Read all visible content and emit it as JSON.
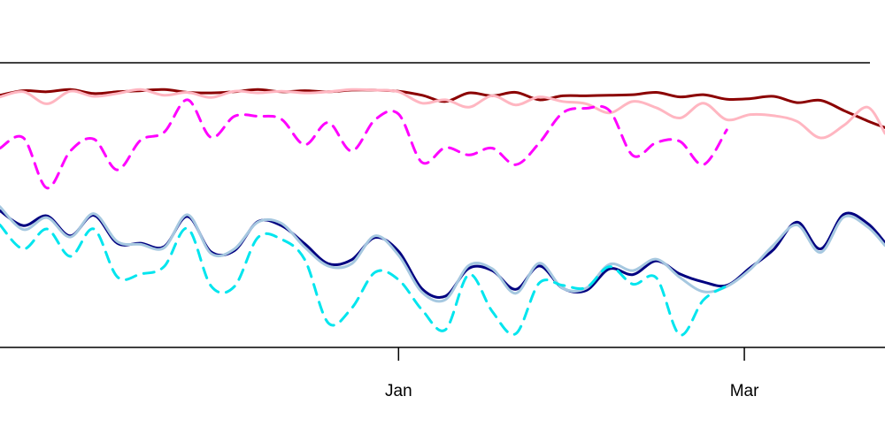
{
  "chart_data": {
    "type": "line",
    "title": "",
    "xlabel": "",
    "ylabel": "",
    "x_ticks": [
      {
        "label": "Jan",
        "date": "2015-01-01"
      },
      {
        "label": "Mar",
        "date": "2015-03-01"
      }
    ],
    "xlim": [
      "2014-10-25",
      "2015-03-25"
    ],
    "ylim": [
      0,
      100
    ],
    "grid": false,
    "legend": "none",
    "series": [
      {
        "color": "#8b0000",
        "style": "solid",
        "x": [
          "2014-10-25",
          "2014-10-29",
          "2014-11-02",
          "2014-11-06",
          "2014-11-10",
          "2014-11-14",
          "2014-11-18",
          "2014-11-22",
          "2014-11-26",
          "2014-11-30",
          "2014-12-04",
          "2014-12-08",
          "2014-12-12",
          "2014-12-16",
          "2014-12-20",
          "2014-12-24",
          "2014-12-28",
          "2015-01-01",
          "2015-01-05",
          "2015-01-09",
          "2015-01-13",
          "2015-01-17",
          "2015-01-21",
          "2015-01-25",
          "2015-01-29",
          "2015-02-02",
          "2015-02-06",
          "2015-02-10",
          "2015-02-14",
          "2015-02-18",
          "2015-02-22",
          "2015-02-26",
          "2015-03-02",
          "2015-03-06",
          "2015-03-10",
          "2015-03-14",
          "2015-03-18",
          "2015-03-22",
          "2015-03-25"
        ],
        "y": [
          88.6,
          90.2,
          89.8,
          90.6,
          89.2,
          89.8,
          90.2,
          90.6,
          89.6,
          89.4,
          89.8,
          90.6,
          89.8,
          90.2,
          89.8,
          90.4,
          90.4,
          90.0,
          88.6,
          86.4,
          89.4,
          88.4,
          89.6,
          87.0,
          88.4,
          88.4,
          88.6,
          88.8,
          89.6,
          88.0,
          88.8,
          87.2,
          87.4,
          88.2,
          86.0,
          86.8,
          83.2,
          79.6,
          77.2
        ]
      },
      {
        "color": "#ffb6c1",
        "style": "solid",
        "x": [
          "2014-10-25",
          "2014-10-29",
          "2014-11-02",
          "2014-11-06",
          "2014-11-10",
          "2014-11-14",
          "2014-11-18",
          "2014-11-22",
          "2014-11-26",
          "2014-11-30",
          "2014-12-04",
          "2014-12-08",
          "2014-12-12",
          "2014-12-16",
          "2014-12-20",
          "2014-12-24",
          "2014-12-28",
          "2015-01-01",
          "2015-01-05",
          "2015-01-09",
          "2015-01-13",
          "2015-01-17",
          "2015-01-21",
          "2015-01-25",
          "2015-01-29",
          "2015-02-02",
          "2015-02-06",
          "2015-02-10",
          "2015-02-14",
          "2015-02-18",
          "2015-02-22",
          "2015-02-26",
          "2015-03-02",
          "2015-03-06",
          "2015-03-10",
          "2015-03-14",
          "2015-03-18",
          "2015-03-22",
          "2015-03-25"
        ],
        "y": [
          88.0,
          89.8,
          85.6,
          90.0,
          88.2,
          89.2,
          90.6,
          88.6,
          89.6,
          87.8,
          90.0,
          89.4,
          90.0,
          89.4,
          89.8,
          90.6,
          90.4,
          89.8,
          85.8,
          87.0,
          84.4,
          88.4,
          85.2,
          88.0,
          86.4,
          85.6,
          82.4,
          86.4,
          84.2,
          80.6,
          85.8,
          80.0,
          81.8,
          81.4,
          79.4,
          73.6,
          78.0,
          84.4,
          75.2
        ]
      },
      {
        "color": "#ff00ff",
        "style": "dashed",
        "x": [
          "2014-10-25",
          "2014-10-29",
          "2014-11-02",
          "2014-11-06",
          "2014-11-10",
          "2014-11-14",
          "2014-11-18",
          "2014-11-22",
          "2014-11-26",
          "2014-11-30",
          "2014-12-04",
          "2014-12-08",
          "2014-12-12",
          "2014-12-16",
          "2014-12-20",
          "2014-12-24",
          "2014-12-28",
          "2015-01-01",
          "2015-01-05",
          "2015-01-09",
          "2015-01-13",
          "2015-01-17",
          "2015-01-21",
          "2015-01-25",
          "2015-01-29",
          "2015-02-02",
          "2015-02-06",
          "2015-02-10",
          "2015-02-14",
          "2015-02-18",
          "2015-02-22",
          "2015-02-26"
        ],
        "y": [
          70.0,
          73.6,
          56.0,
          69.0,
          73.2,
          62.4,
          72.8,
          75.6,
          87.0,
          73.8,
          81.2,
          81.2,
          80.2,
          71.2,
          79.0,
          69.0,
          80.0,
          82.0,
          65.0,
          70.2,
          67.6,
          70.0,
          64.2,
          71.8,
          82.4,
          84.0,
          83.2,
          67.4,
          72.0,
          72.4,
          64.2,
          76.4
        ]
      },
      {
        "color": "#000080",
        "style": "solid",
        "x": [
          "2014-10-25",
          "2014-10-29",
          "2014-11-02",
          "2014-11-06",
          "2014-11-10",
          "2014-11-14",
          "2014-11-18",
          "2014-11-22",
          "2014-11-26",
          "2014-11-30",
          "2014-12-04",
          "2014-12-08",
          "2014-12-12",
          "2014-12-16",
          "2014-12-20",
          "2014-12-24",
          "2014-12-28",
          "2015-01-01",
          "2015-01-05",
          "2015-01-09",
          "2015-01-13",
          "2015-01-17",
          "2015-01-21",
          "2015-01-25",
          "2015-01-29",
          "2015-02-02",
          "2015-02-06",
          "2015-02-10",
          "2015-02-14",
          "2015-02-18",
          "2015-02-22",
          "2015-02-26",
          "2015-03-02",
          "2015-03-06",
          "2015-03-10",
          "2015-03-14",
          "2015-03-18",
          "2015-03-22",
          "2015-03-25"
        ],
        "y": [
          48.0,
          42.8,
          46.2,
          39.2,
          46.4,
          36.6,
          36.6,
          35.4,
          46.0,
          33.6,
          34.0,
          44.2,
          42.8,
          36.4,
          29.4,
          30.8,
          38.6,
          33.8,
          20.6,
          18.0,
          27.8,
          27.0,
          20.4,
          28.6,
          20.8,
          20.0,
          27.6,
          25.6,
          30.4,
          25.8,
          23.0,
          21.8,
          28.0,
          34.4,
          44.0,
          34.6,
          46.8,
          43.6,
          36.8
        ]
      },
      {
        "color": "#a6c8e0",
        "style": "solid",
        "x": [
          "2014-10-25",
          "2014-10-29",
          "2014-11-02",
          "2014-11-06",
          "2014-11-10",
          "2014-11-14",
          "2014-11-18",
          "2014-11-22",
          "2014-11-26",
          "2014-11-30",
          "2014-12-04",
          "2014-12-08",
          "2014-12-12",
          "2014-12-16",
          "2014-12-20",
          "2014-12-24",
          "2014-12-28",
          "2015-01-01",
          "2015-01-05",
          "2015-01-09",
          "2015-01-13",
          "2015-01-17",
          "2015-01-21",
          "2015-01-25",
          "2015-01-29",
          "2015-02-02",
          "2015-02-06",
          "2015-02-10",
          "2015-02-14",
          "2015-02-18",
          "2015-02-22",
          "2015-02-26",
          "2015-03-02",
          "2015-03-06",
          "2015-03-10",
          "2015-03-14",
          "2015-03-18",
          "2015-03-22",
          "2015-03-25"
        ],
        "y": [
          49.4,
          41.4,
          45.6,
          38.8,
          47.0,
          37.2,
          36.2,
          35.0,
          46.6,
          33.0,
          34.6,
          44.0,
          43.6,
          35.2,
          28.6,
          29.4,
          39.2,
          32.4,
          19.4,
          16.8,
          28.8,
          27.6,
          19.0,
          29.6,
          20.8,
          20.8,
          29.2,
          27.0,
          31.0,
          24.6,
          19.6,
          21.4,
          27.4,
          36.0,
          43.0,
          33.4,
          45.8,
          42.4,
          35.8
        ]
      },
      {
        "color": "#00e5ee",
        "style": "dashed",
        "x": [
          "2014-10-25",
          "2014-10-29",
          "2014-11-02",
          "2014-11-06",
          "2014-11-10",
          "2014-11-14",
          "2014-11-18",
          "2014-11-22",
          "2014-11-26",
          "2014-11-30",
          "2014-12-04",
          "2014-12-08",
          "2014-12-12",
          "2014-12-16",
          "2014-12-20",
          "2014-12-24",
          "2014-12-28",
          "2015-01-01",
          "2015-01-05",
          "2015-01-09",
          "2015-01-13",
          "2015-01-17",
          "2015-01-21",
          "2015-01-25",
          "2015-01-29",
          "2015-02-02",
          "2015-02-06",
          "2015-02-10",
          "2015-02-14",
          "2015-02-18",
          "2015-02-22",
          "2015-02-26"
        ],
        "y": [
          43.0,
          34.6,
          41.6,
          32.0,
          41.6,
          24.8,
          25.8,
          28.4,
          41.8,
          21.6,
          21.4,
          38.6,
          38.0,
          30.8,
          8.6,
          13.8,
          26.4,
          23.8,
          13.2,
          6.2,
          25.6,
          12.6,
          4.8,
          22.6,
          21.8,
          21.0,
          28.4,
          22.2,
          24.4,
          4.4,
          16.6,
          21.6
        ]
      }
    ]
  }
}
